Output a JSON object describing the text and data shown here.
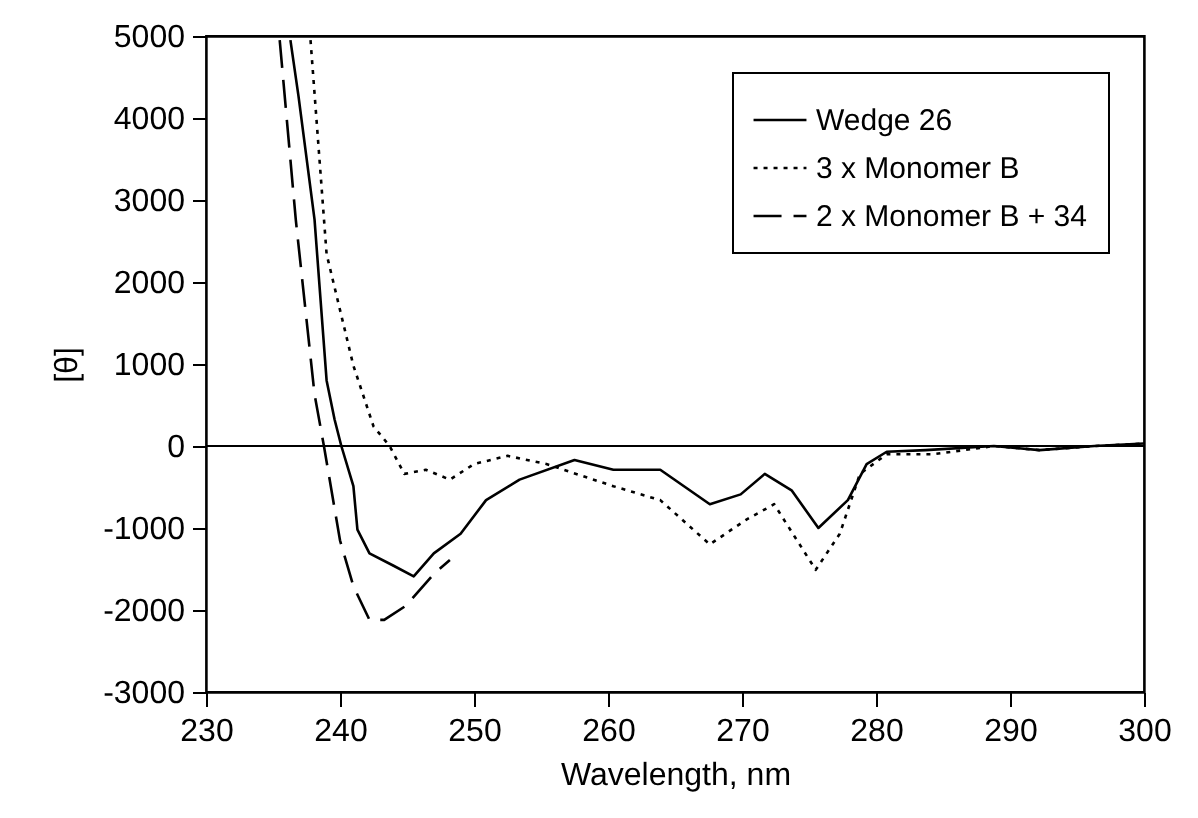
{
  "chart_data": {
    "type": "line",
    "xlabel": "Wavelength, nm",
    "ylabel": "[θ]",
    "xlim": [
      230,
      300
    ],
    "xticks": [
      230,
      240,
      250,
      260,
      270,
      280,
      290,
      300
    ],
    "ylim": [
      -3000,
      5000
    ],
    "yticks": [
      -3000,
      -2000,
      -1000,
      0,
      1000,
      2000,
      3000,
      4000,
      5000
    ],
    "grid": false,
    "legend": "top right",
    "marker": "none",
    "ref_lines": [
      {
        "axis": "y",
        "value": 0,
        "color": "#000000"
      }
    ],
    "series": [
      {
        "name": "Wedge 26",
        "color": "#000000",
        "line_style": "solid",
        "x": [
          236.3,
          236.9,
          238.1,
          239.0,
          239.6,
          240.1,
          241.0,
          241.3,
          242.2,
          244.0,
          245.5,
          247.0,
          249.0,
          250.9,
          253.4,
          257.5,
          260.4,
          263.9,
          267.6,
          269.9,
          271.7,
          273.7,
          275.7,
          277.9,
          279.3,
          280.8,
          283.7,
          288.8,
          292.2,
          296.3,
          300
        ],
        "values": [
          4950,
          4270,
          2760,
          800,
          320,
          0,
          -490,
          -1020,
          -1310,
          -1460,
          -1590,
          -1310,
          -1070,
          -660,
          -410,
          -170,
          -290,
          -290,
          -710,
          -590,
          -340,
          -540,
          -1000,
          -660,
          -220,
          -70,
          -50,
          0,
          -50,
          0,
          30
        ]
      },
      {
        "name": "3 x Monomer B",
        "color": "#000000",
        "line_style": "dotted",
        "x": [
          237.8,
          239.0,
          241.0,
          242.5,
          243.7,
          244.8,
          246.4,
          248.2,
          250.0,
          252.5,
          255.4,
          260.4,
          263.9,
          267.6,
          270.3,
          272.4,
          275.5,
          277.3,
          278.8,
          280.8,
          284.3,
          288.8,
          292.2,
          296.3,
          300
        ],
        "values": [
          4950,
          2340,
          980,
          240,
          0,
          -340,
          -290,
          -410,
          -220,
          -120,
          -220,
          -490,
          -660,
          -1200,
          -900,
          -710,
          -1510,
          -1070,
          -340,
          -100,
          -100,
          0,
          -50,
          0,
          30
        ]
      },
      {
        "name": "2 x Monomer B + 34",
        "color": "#000000",
        "line_style": "dashed",
        "x": [
          235.5,
          236.7,
          238.1,
          238.8,
          240.0,
          241.0,
          242.2,
          243.3,
          244.9,
          247.0,
          248.2
        ],
        "values": [
          4950,
          2760,
          630,
          0,
          -1150,
          -1710,
          -2120,
          -2120,
          -1950,
          -1560,
          -1390
        ]
      }
    ]
  }
}
